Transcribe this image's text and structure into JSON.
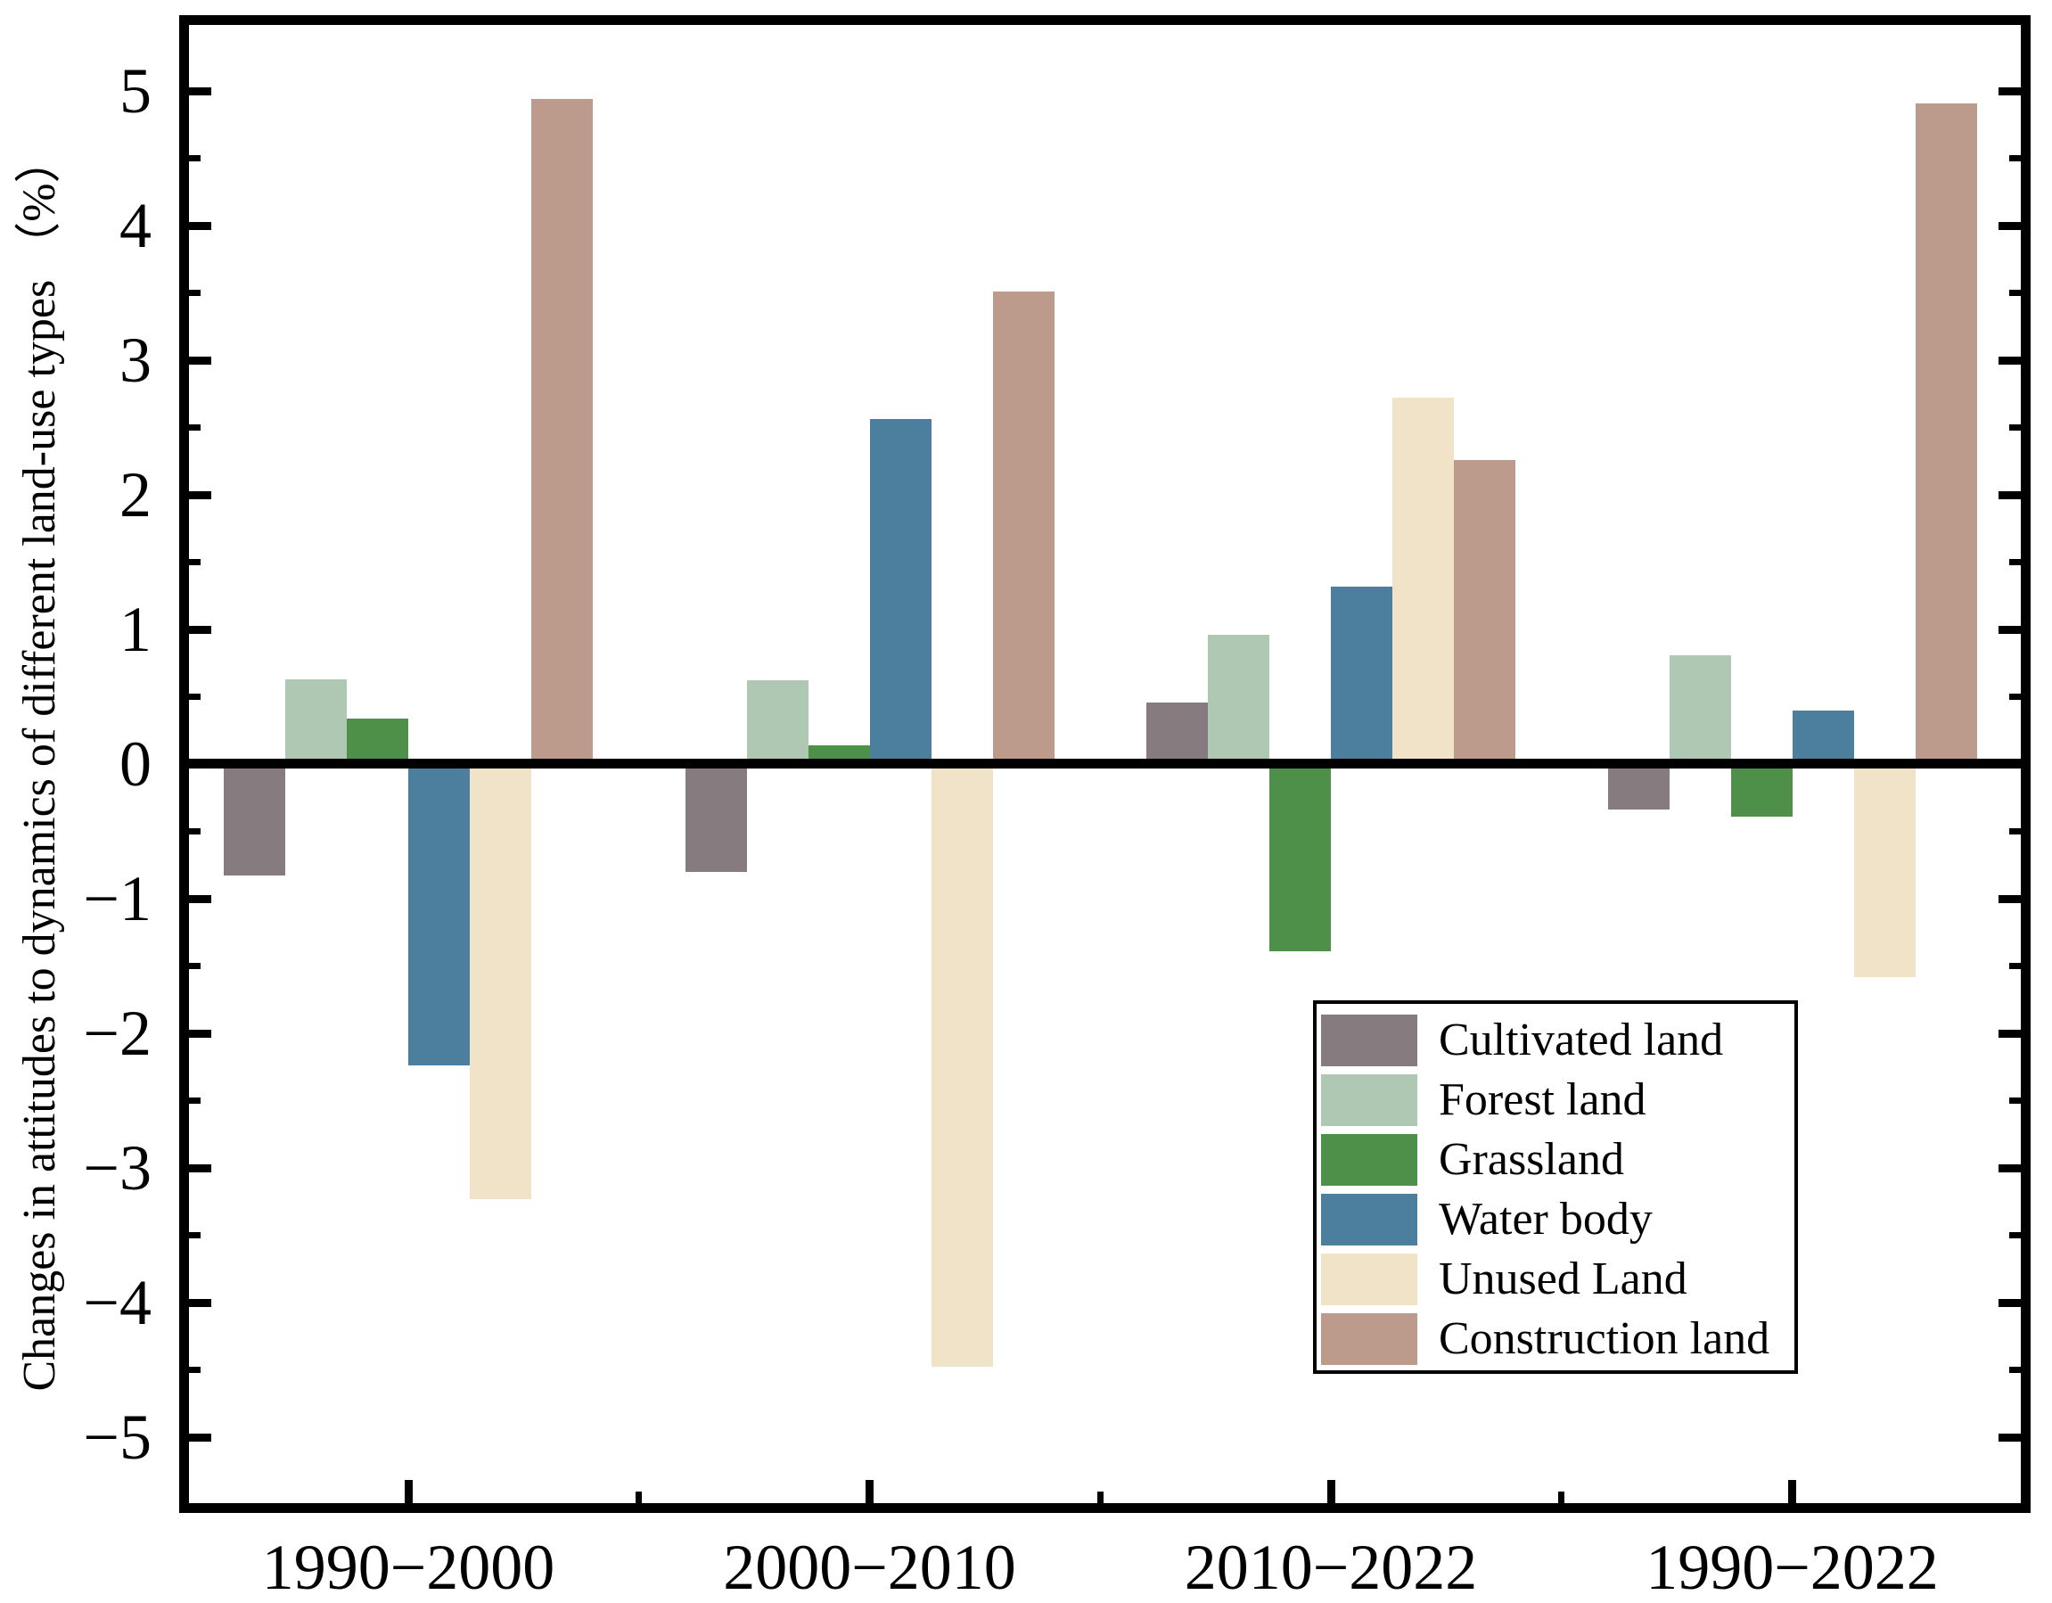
{
  "figure": {
    "kind": "grouped bar chart of land-use change rates"
  },
  "chart_data": {
    "type": "bar",
    "title": "",
    "xlabel": "",
    "ylabel": "Changes in attitudes to dynamics of different land-use types （%）",
    "categories": [
      "1990−2000",
      "2000−2010",
      "2010−2022",
      "1990−2022"
    ],
    "series": [
      {
        "name": "Cultivated land",
        "color": "#867b7f",
        "values": [
          -0.83,
          -0.8,
          0.46,
          -0.34
        ]
      },
      {
        "name": "Forest land",
        "color": "#aec8b4",
        "values": [
          0.63,
          0.62,
          0.96,
          0.81
        ]
      },
      {
        "name": "Grassland",
        "color": "#4e9049",
        "values": [
          0.34,
          0.14,
          -1.39,
          -0.39
        ]
      },
      {
        "name": "Water body",
        "color": "#4c7f9e",
        "values": [
          -2.24,
          2.56,
          1.32,
          0.4
        ]
      },
      {
        "name": "Unused Land",
        "color": "#f0e3c7",
        "values": [
          -3.23,
          -4.48,
          2.72,
          -1.58
        ]
      },
      {
        "name": "Construction land",
        "color": "#bc9a8c",
        "values": [
          4.94,
          3.51,
          2.26,
          4.91
        ]
      }
    ],
    "ylim": [
      -5.5,
      5.5
    ],
    "yticks": [
      -5,
      -4,
      -3,
      -2,
      -1,
      0,
      1,
      2,
      3,
      4,
      5
    ],
    "ytick_labels": [
      "−5",
      "−4",
      "−3",
      "−2",
      "−1",
      "0",
      "1",
      "2",
      "3",
      "4",
      "5"
    ],
    "y_minor_tick_step": 0.5,
    "grid": false,
    "zero_line": true,
    "legend_position": "inside bottom-right",
    "axis_color": "#000000",
    "background_color": "#ffffff"
  }
}
